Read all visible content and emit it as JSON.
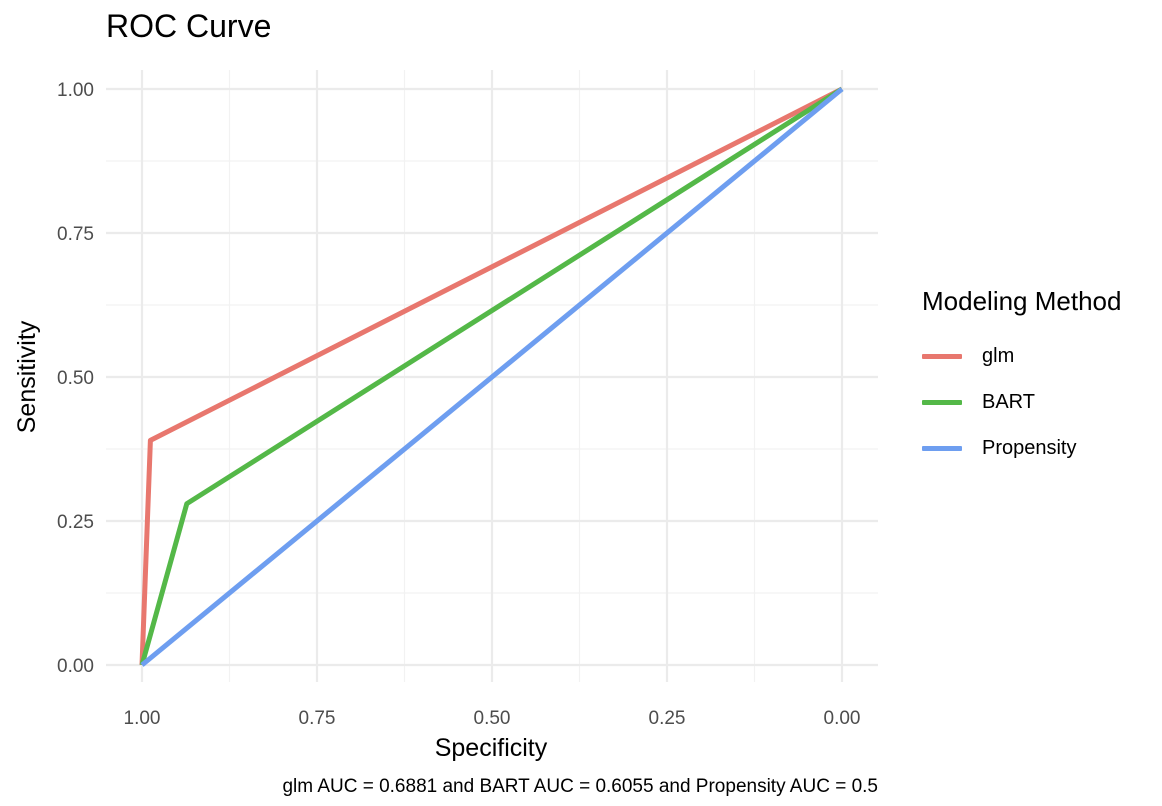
{
  "chart_data": {
    "type": "line",
    "title": "ROC Curve",
    "xlabel": "Specificity",
    "ylabel": "Sensitivity",
    "xlim": [
      1.0,
      0.0
    ],
    "ylim": [
      0.0,
      1.0
    ],
    "x_reversed": true,
    "grid": true,
    "x_ticks": [
      "1.00",
      "0.75",
      "0.50",
      "0.25",
      "0.00"
    ],
    "y_ticks": [
      "0.00",
      "0.25",
      "0.50",
      "0.75",
      "1.00"
    ],
    "x_tick_values": [
      1.0,
      0.75,
      0.5,
      0.25,
      0.0
    ],
    "y_tick_values": [
      0.0,
      0.25,
      0.5,
      0.75,
      1.0
    ],
    "legend_title": "Modeling Method",
    "legend_position": "right",
    "series": [
      {
        "name": "glm",
        "color": "#E8776E",
        "points": [
          {
            "x": 1.0,
            "y": 0.0
          },
          {
            "x": 0.988,
            "y": 0.39
          },
          {
            "x": 0.0,
            "y": 1.0
          }
        ]
      },
      {
        "name": "BART",
        "color": "#54B848",
        "points": [
          {
            "x": 1.0,
            "y": 0.0
          },
          {
            "x": 0.936,
            "y": 0.28
          },
          {
            "x": 0.0,
            "y": 1.0
          }
        ]
      },
      {
        "name": "Propensity",
        "color": "#6E9EF0",
        "points": [
          {
            "x": 1.0,
            "y": 0.0
          },
          {
            "x": 0.0,
            "y": 1.0
          }
        ]
      }
    ],
    "caption": "glm AUC = 0.6881 and BART AUC = 0.6055 and Propensity AUC = 0.5"
  }
}
